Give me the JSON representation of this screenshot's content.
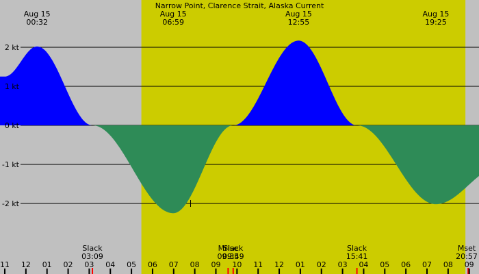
{
  "chart_data": {
    "type": "area",
    "title": "Narrow Point, Clarence Strait, Alaska Current",
    "unit": "kt",
    "x_range_hours": [
      -1.0,
      33.0
    ],
    "ylim": [
      -3.15,
      2.45
    ],
    "y_ticks": [
      {
        "value": 2,
        "label": "2 kt"
      },
      {
        "value": 1,
        "label": "1 kt"
      },
      {
        "value": 0,
        "label": "0 kt"
      },
      {
        "value": -1,
        "label": "-1 kt"
      },
      {
        "value": -2,
        "label": "-2 kt"
      }
    ],
    "daylight": {
      "start_hour": 5.47,
      "end_hour": 20.82
    },
    "extrema_labels": [
      {
        "date": "Aug 15",
        "time": "00:32",
        "hour": 0.53
      },
      {
        "date": "Aug 15",
        "time": "06:59",
        "hour": 6.98
      },
      {
        "date": "Aug 15",
        "time": "12:55",
        "hour": 12.92
      },
      {
        "date": "Aug 15",
        "time": "19:25",
        "hour": 19.42
      }
    ],
    "current_points": [
      {
        "hour": -1.0,
        "value": 1.25
      },
      {
        "hour": 0.53,
        "value": 2.02
      },
      {
        "hour": 3.15,
        "value": 0.0
      },
      {
        "hour": 6.98,
        "value": -2.25
      },
      {
        "hour": 9.82,
        "value": 0.0
      },
      {
        "hour": 12.92,
        "value": 2.17
      },
      {
        "hour": 15.68,
        "value": 0.0
      },
      {
        "hour": 19.42,
        "value": -2.02
      },
      {
        "hour": 22.5,
        "value": -1.05
      }
    ],
    "event_labels": [
      {
        "label": "Slack",
        "time": "03:09",
        "hour": 3.15
      },
      {
        "label": "Mrise",
        "time": "09:35",
        "hour": 9.58
      },
      {
        "label": "Slack",
        "time": "09:49",
        "hour": 9.82
      },
      {
        "label": "Slack",
        "time": "15:41",
        "hour": 15.68
      },
      {
        "label": "Mset",
        "time": "20:57",
        "hour": 20.95
      }
    ],
    "x_tick_labels": [
      "11",
      "12",
      "01",
      "02",
      "03",
      "04",
      "05",
      "06",
      "07",
      "08",
      "09",
      "10",
      "11",
      "12",
      "01",
      "02",
      "03",
      "04",
      "05",
      "06",
      "07",
      "08",
      "09"
    ],
    "x_tick_start_hour": -1,
    "cursor": {
      "hour": 7.8,
      "value": -2.0
    },
    "colors": {
      "night": "#c0c0c0",
      "day": "#cccc00",
      "flood": "#0000ff",
      "ebb": "#2e8b57",
      "grid": "#000000",
      "event_tick": "#ff0000"
    }
  }
}
